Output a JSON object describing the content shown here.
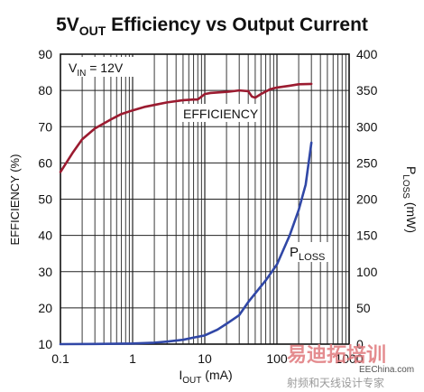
{
  "chart_data": {
    "type": "line",
    "title": {
      "main": "5V",
      "sub": "OUT",
      "rest": " Efficiency vs Output Current"
    },
    "xlabel": {
      "main": "I",
      "sub": "OUT",
      "rest": " (mA)"
    },
    "ylabel_left": "EFFICIENCY (%)",
    "ylabel_right": {
      "main": "P",
      "sub": "LOSS",
      "rest": " (mW)"
    },
    "x_scale": "log",
    "xlim": [
      0.1,
      1000
    ],
    "ylim_left": [
      10,
      90
    ],
    "ylim_right": [
      0,
      400
    ],
    "x_tick_labels": [
      "0.1",
      "1",
      "10",
      "100",
      "1000"
    ],
    "y_left_ticks": [
      10,
      20,
      30,
      40,
      50,
      60,
      70,
      80,
      90
    ],
    "y_right_ticks": [
      0,
      50,
      100,
      150,
      200,
      250,
      300,
      350,
      400
    ],
    "annotation": {
      "main": "V",
      "sub": "IN",
      "rest": " = 12V"
    },
    "grid": true,
    "series": [
      {
        "name": "EFFICIENCY",
        "axis": "left",
        "color": "#9b1b30",
        "points": [
          [
            0.1,
            57.5
          ],
          [
            0.15,
            63
          ],
          [
            0.2,
            66.5
          ],
          [
            0.3,
            69.5
          ],
          [
            0.5,
            72
          ],
          [
            0.7,
            73.5
          ],
          [
            1,
            74.5
          ],
          [
            1.5,
            75.5
          ],
          [
            2,
            76
          ],
          [
            3,
            76.7
          ],
          [
            5,
            77.3
          ],
          [
            7,
            77.5
          ],
          [
            8,
            77.5
          ],
          [
            10,
            79
          ],
          [
            12,
            79.3
          ],
          [
            20,
            79.6
          ],
          [
            30,
            80
          ],
          [
            40,
            79.8
          ],
          [
            45,
            78.3
          ],
          [
            50,
            78
          ],
          [
            60,
            79
          ],
          [
            80,
            80.3
          ],
          [
            100,
            80.8
          ],
          [
            150,
            81.3
          ],
          [
            200,
            81.7
          ],
          [
            300,
            81.8
          ]
        ],
        "label": "EFFICIENCY"
      },
      {
        "name": "PLOSS",
        "axis": "right",
        "color": "#3047a6",
        "points": [
          [
            0.1,
            0
          ],
          [
            0.3,
            0.2
          ],
          [
            1,
            0.8
          ],
          [
            2,
            2
          ],
          [
            3,
            3.5
          ],
          [
            5,
            6
          ],
          [
            7,
            9
          ],
          [
            10,
            12
          ],
          [
            15,
            20
          ],
          [
            20,
            28
          ],
          [
            30,
            40
          ],
          [
            40,
            58
          ],
          [
            50,
            70
          ],
          [
            70,
            88
          ],
          [
            100,
            110
          ],
          [
            150,
            150
          ],
          [
            200,
            185
          ],
          [
            250,
            220
          ],
          [
            300,
            278
          ]
        ],
        "label": {
          "main": "P",
          "sub": "LOSS"
        }
      }
    ]
  },
  "watermark": {
    "line1": "易迪拓培训",
    "line2": "射频和天线设计专家",
    "site": "EEChina.com"
  },
  "colors": {
    "axis": "#111111",
    "grid": "#222222",
    "efficiency": "#9b1b30",
    "ploss": "#3047a6",
    "watermark": "#e0787c"
  }
}
